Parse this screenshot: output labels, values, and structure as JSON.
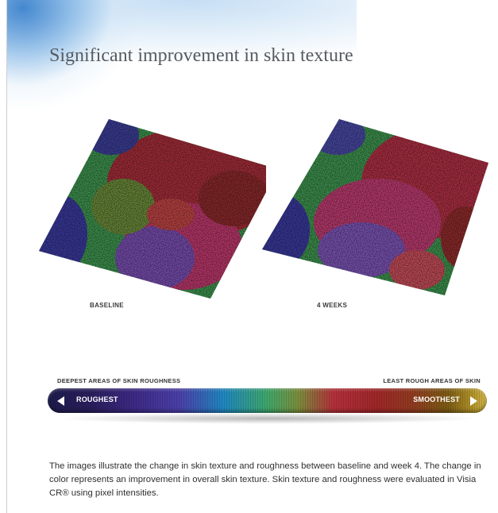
{
  "title": "Significant improvement in skin texture",
  "images": [
    {
      "caption": "BASELINE"
    },
    {
      "caption": "4 WEEKS"
    }
  ],
  "scale": {
    "left_heading": "DEEPEST AREAS OF SKIN ROUGHNESS",
    "right_heading": "LEAST ROUGH AREAS OF SKIN",
    "left_label": "ROUGHEST",
    "right_label": "SMOOTHEST",
    "left_icon": "triangle-left-icon",
    "right_icon": "triangle-right-icon",
    "colors": [
      "#1d1c4c",
      "#4b3fa8",
      "#1f86bf",
      "#3ea66a",
      "#b2303a",
      "#8f3a20",
      "#d2b54c"
    ]
  },
  "description": "The images illustrate the change in skin texture and roughness between baseline and week 4. The change in color represents an improvement in overall skin texture. Skin texture and roughness were evaluated in Visia CR® using pixel intensities."
}
